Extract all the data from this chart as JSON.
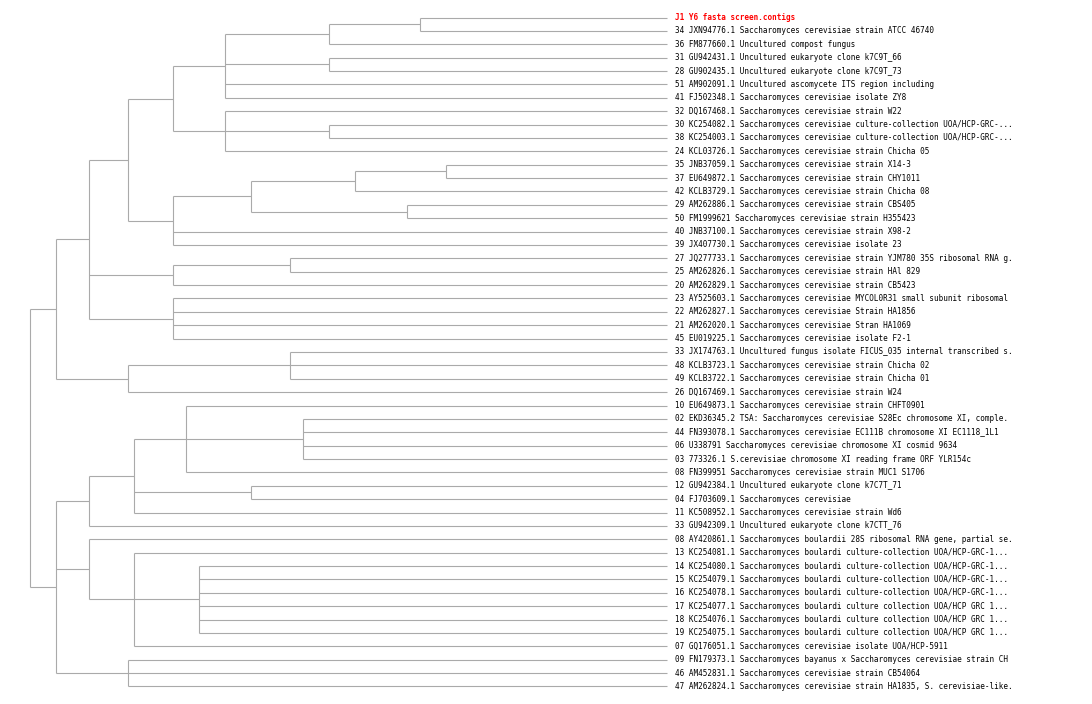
{
  "background_color": "#ffffff",
  "line_color": "#aaaaaa",
  "highlight_color": "#ff0000",
  "text_color": "#000000",
  "highlight_label": "J1 Y6 fasta screen.contigs",
  "labels": [
    "J1 Y6 fasta screen.contigs",
    "34 JXN94776.1 Saccharomyces cerevisiae strain ATCC 46740",
    "36 FM877660.1 Uncultured compost fungus",
    "31 GU942431.1 Uncultured eukaryote clone k7C9T_66",
    "28 GU902435.1 Uncultured eukaryote clone k7C9T_73",
    "51 AM902091.1 Uncultured ascomycete ITS region including",
    "41 FJ502348.1 Saccharomyces cerevisiae isolate ZY8",
    "32 DQ167468.1 Saccharomyces cerevisiae strain W22",
    "30 KC254082.1 Saccharomyces cerevisiae culture-collection UOA/HCP-GRC-...",
    "38 KC254003.1 Saccharomyces cerevisiae culture-collection UOA/HCP-GRC-...",
    "24 KCL03726.1 Saccharomyces cerevisiae strain Chicha 05",
    "35 JNB37059.1 Saccharomyces cerevisiae strain X14-3",
    "37 EU649872.1 Saccharomyces cerevisiae strain CHY1011",
    "42 KCLB3729.1 Saccharomyces cerevisiae strain Chicha 08",
    "29 AM262886.1 Saccharomyces cerevisiae strain CBS405",
    "50 FM1999621 Saccharomyces cerevisiae strain H355423",
    "40 JNB37100.1 Saccharomyces cerevisiae strain X98-2",
    "39 JX407730.1 Saccharomyces cerevisiae isolate 23",
    "27 JQ277733.1 Saccharomyces cerevisiae strain YJM780 35S ribosomal RNA g.",
    "25 AM262826.1 Saccharomyces cerevisiae strain HAl 829",
    "20 AM262829.1 Saccharomyces cerevisiae strain CB5423",
    "23 AY525603.1 Saccharomyces cerevisiae MYCOL0R31 small subunit ribosomal",
    "22 AM262827.1 Saccharomyces cerevisiae Strain HA1856",
    "21 AM262020.1 Saccharomyces cerevisiae Stran HA1069",
    "45 EU019225.1 Saccharomyces cerevisiae isolate F2-1",
    "33 JX174763.1 Uncultured fungus isolate FICUS_035 internal transcribed s.",
    "48 KCLB3723.1 Saccharomyces cerevisiae strain Chicha 02",
    "49 KCLB3722.1 Saccharomyces cerevisiae strain Chicha 01",
    "26 DQ167469.1 Saccharomyces cerevisiae strain W24",
    "10 EU649873.1 Saccharomyces cerevisiae strain CHFT0901",
    "02 EKD36345.2 TSA: Saccharomyces cerevisiae S28Ec chromosome XI, comple.",
    "44 FN393078.1 Saccharomyces cerevisiae EC111B chromosome XI EC1118_1L1",
    "06 U338791 Saccharomyces cerevisiae chromosome XI cosmid 9634",
    "03 773326.1 S.cerevisiae chromosome XI reading frame ORF YLR154c",
    "08 FN399951 Saccharomyces cerevisiae strain MUC1 S1706",
    "12 GU942384.1 Uncultured eukaryote clone k7C7T_71",
    "04 FJ703609.1 Saccharomyces cerevisiae",
    "11 KC508952.1 Saccharomyces cerevisiae strain Wd6",
    "33 GU942309.1 Uncultured eukaryote clone k7CTT_76",
    "08 AY420861.1 Saccharomyces boulardii 28S ribosomal RNA gene, partial se.",
    "13 KC254081.1 Saccharomyces boulardi culture-collection UOA/HCP-GRC-1...",
    "14 KC254080.1 Saccharomyces boulardi culture-collection UOA/HCP-GRC-1...",
    "15 KC254079.1 Saccharomyces boulardi culture-collection UOA/HCP-GRC-1...",
    "16 KC254078.1 Saccharomyces boulardi culture-collection UOA/HCP-GRC-1...",
    "17 KC254077.1 Saccharomyces boulardi culture collection UOA/HCP GRC 1...",
    "18 KC254076.1 Saccharomyces boulardi culture collection UOA/HCP GRC 1...",
    "19 KC254075.1 Saccharomyces boulardi culture collection UOA/HCP GRC 1...",
    "07 GQ176051.1 Saccharomyces cerevisiae isolate UOA/HCP-5911",
    "09 FN179373.1 Saccharomyces bayanus x Saccharomyces cerevisiae strain CH",
    "46 AM452831.1 Saccharomyces cerevisiae strain CB54064",
    "47 AM262824.1 Saccharomyces cerevisiae strain HA1835, S. cerevisiae-like."
  ],
  "fontsize": 5.5,
  "fig_width": 10.92,
  "fig_height": 7.04
}
